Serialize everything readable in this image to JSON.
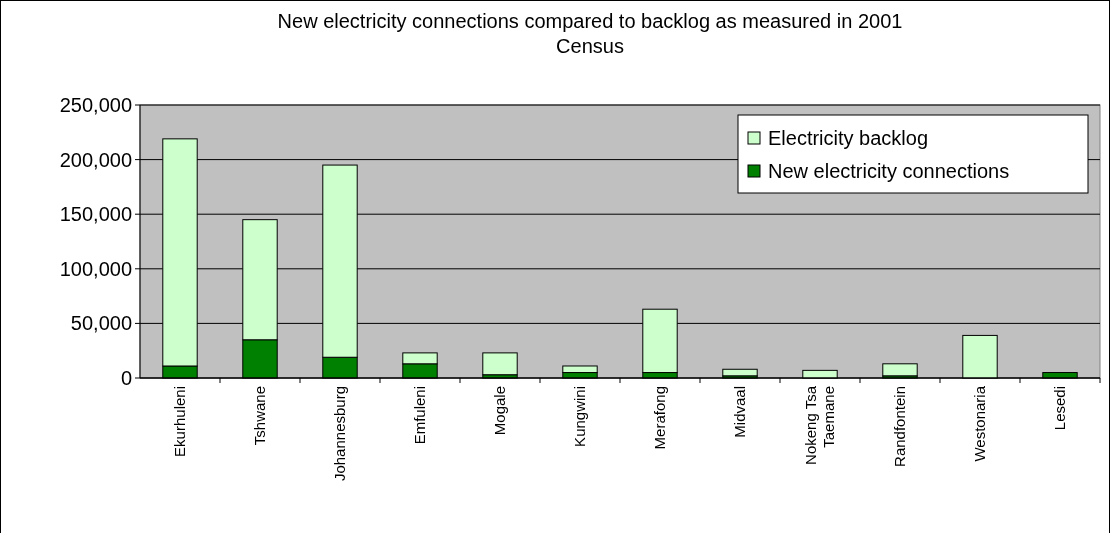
{
  "chart_data": {
    "type": "bar",
    "title": "New electricity connections compared to backlog as measured in 2001 Census",
    "categories": [
      "Ekurhuleni",
      "Tshwane",
      "Johannesburg",
      "Emfuleni",
      "Mogale",
      "Kungwini",
      "Merafong",
      "Midvaal",
      "Nokeng Tsa Taemane",
      "Randfontein",
      "Westonaria",
      "Lesedi"
    ],
    "stacked": true,
    "series": [
      {
        "name": "New electricity connections",
        "color": "#008000",
        "values": [
          11000,
          35000,
          19000,
          13000,
          3000,
          5000,
          5000,
          2000,
          0,
          2000,
          0,
          5000
        ]
      },
      {
        "name": "Electricity backlog",
        "color": "#ccffcc",
        "values": [
          208000,
          110000,
          176000,
          10000,
          20000,
          6000,
          58000,
          6000,
          7000,
          11000,
          39000,
          0
        ]
      }
    ],
    "ylim": [
      0,
      250000
    ],
    "yticks": [
      {
        "value": 0,
        "label": "0"
      },
      {
        "value": 50000,
        "label": "50,000"
      },
      {
        "value": 100000,
        "label": "100,000"
      },
      {
        "value": 150000,
        "label": "150,000"
      },
      {
        "value": 200000,
        "label": "200,000"
      },
      {
        "value": 250000,
        "label": "250,000"
      }
    ],
    "grid": "y",
    "legend": "top right"
  }
}
